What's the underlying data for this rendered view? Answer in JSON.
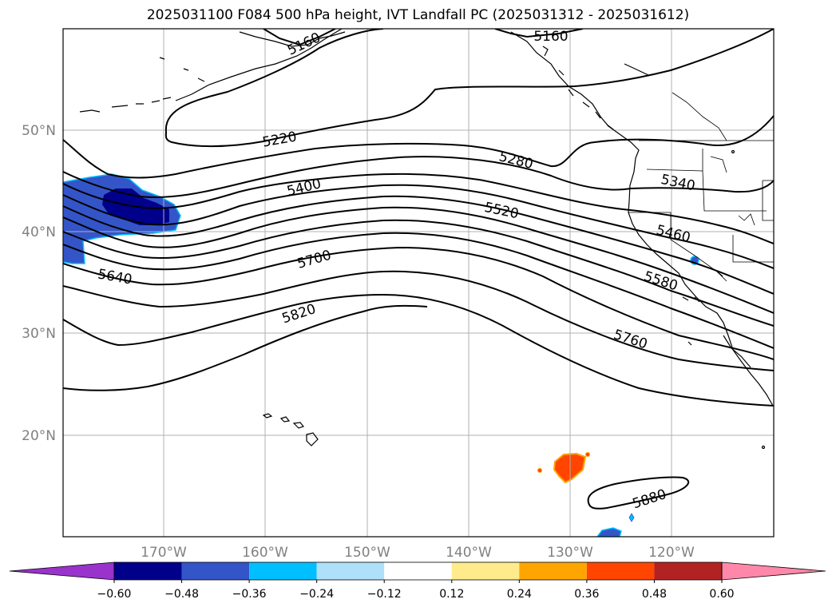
{
  "title": "2025031100 F084 500 hPa height, IVT Landfall PC (2025031312 - 2025031612)",
  "map": {
    "lat_labels": [
      "50°N",
      "40°N",
      "30°N",
      "20°N"
    ],
    "lon_labels": [
      "170°W",
      "160°W",
      "150°W",
      "140°W",
      "130°W",
      "120°W"
    ],
    "contour_labels": [
      "5160",
      "5160",
      "5220",
      "5280",
      "5340",
      "5400",
      "5460",
      "5520",
      "5580",
      "5640",
      "5700",
      "5760",
      "5820",
      "5880"
    ]
  },
  "colorbar": {
    "ticks": [
      "−0.60",
      "−0.48",
      "−0.36",
      "−0.24",
      "−0.12",
      "0.12",
      "0.24",
      "0.36",
      "0.48",
      "0.60"
    ],
    "colors": [
      "#9933cc",
      "#00008b",
      "#3455c8",
      "#00bfff",
      "#aee0fa",
      "#ffffff",
      "#ffeb8c",
      "#ffa500",
      "#ff4500",
      "#b22222",
      "#ff88aa"
    ]
  }
}
